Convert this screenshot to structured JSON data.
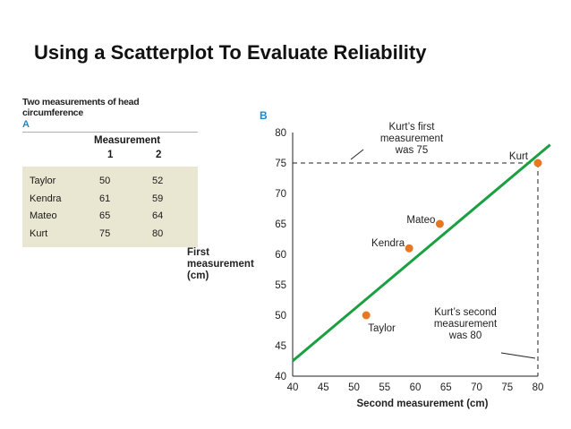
{
  "slide": {
    "title": "Using a Scatterplot To Evaluate Reliability"
  },
  "table": {
    "caption": "Two measurements of head circumference",
    "panel_label": "A",
    "header": "Measurement",
    "columns": [
      "1",
      "2"
    ],
    "rows": [
      {
        "name": "Taylor",
        "m1": "50",
        "m2": "52"
      },
      {
        "name": "Kendra",
        "m1": "61",
        "m2": "59"
      },
      {
        "name": "Mateo",
        "m1": "65",
        "m2": "64"
      },
      {
        "name": "Kurt",
        "m1": "75",
        "m2": "80"
      }
    ]
  },
  "chart_data": {
    "type": "scatter",
    "panel_label": "B",
    "xlabel": "Second measurement (cm)",
    "ylabel_lines": [
      "First",
      "measurement",
      "(cm)"
    ],
    "xlim": [
      40,
      80
    ],
    "ylim": [
      40,
      80
    ],
    "x_ticks": [
      40,
      45,
      50,
      55,
      60,
      65,
      70,
      75,
      80
    ],
    "y_ticks": [
      40,
      45,
      50,
      55,
      60,
      65,
      70,
      75,
      80
    ],
    "points": [
      {
        "label": "Taylor",
        "x": 52,
        "y": 50
      },
      {
        "label": "Kendra",
        "x": 59,
        "y": 61
      },
      {
        "label": "Mateo",
        "x": 64,
        "y": 65
      },
      {
        "label": "Kurt",
        "x": 80,
        "y": 75
      }
    ],
    "reference_line": {
      "from": [
        40,
        42.5
      ],
      "to": [
        82,
        78
      ]
    },
    "annotations": [
      {
        "id": "first",
        "lines": [
          "Kurt’s first",
          "measurement",
          "was 75"
        ]
      },
      {
        "id": "second",
        "lines": [
          "Kurt’s second",
          "measurement",
          "was 80"
        ]
      }
    ],
    "colors": {
      "points": "#e87722",
      "line": "#1aa040",
      "panel_label": "#1e88c8"
    }
  }
}
